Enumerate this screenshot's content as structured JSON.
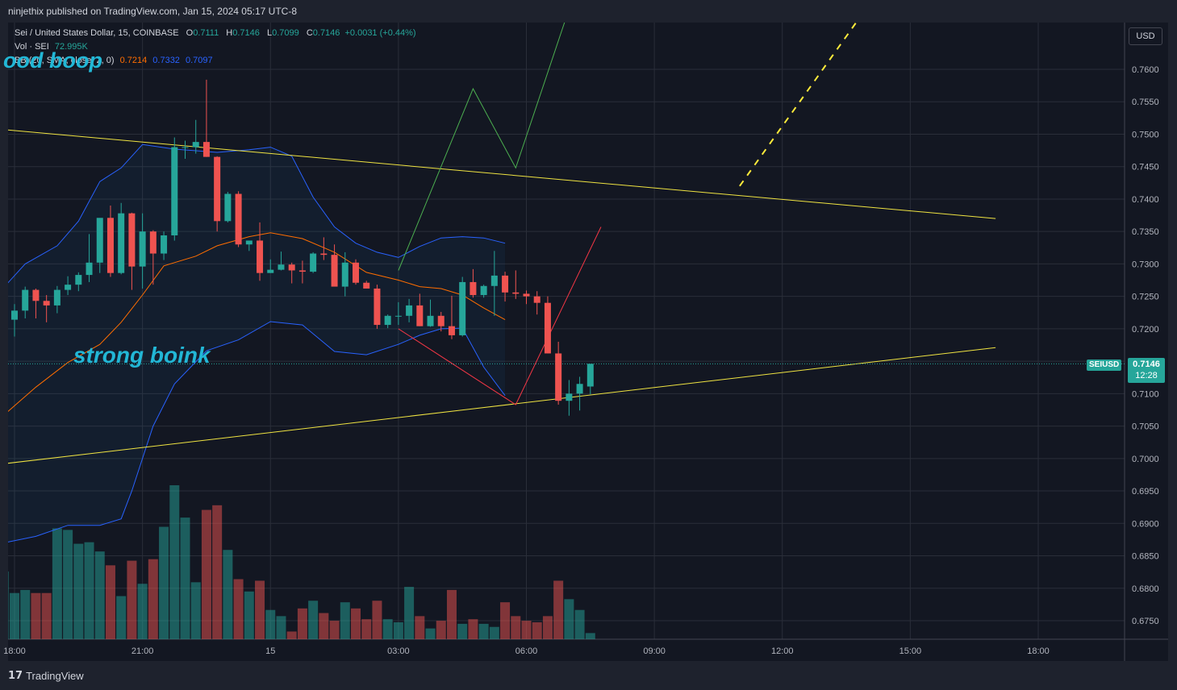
{
  "header": {
    "published_text": "ninjethix published on TradingView.com, Jan 15, 2024 05:17 UTC-8"
  },
  "legend": {
    "symbol": "Sei / United States Dollar, 15, COINBASE",
    "ohlc": {
      "O": "0.7111",
      "H": "0.7146",
      "L": "0.7099",
      "C": "0.7146",
      "change": "+0.0031 (+0.44%)"
    },
    "vol_label": "Vol · SEI",
    "vol_value": "72.995K",
    "bb_label": "BB (20, SMA, close, 2, 0)",
    "bb_basis": "0.7214",
    "bb_upper": "0.7332",
    "bb_lower": "0.7097"
  },
  "annotations": {
    "top_text": "ood boop",
    "mid_text": "strong boink"
  },
  "price_axis": {
    "currency_button": "USD",
    "current_symbol": "SEIUSD",
    "current_price": "0.7146",
    "countdown": "12:28"
  },
  "footer": {
    "brand": "TradingView"
  },
  "colors": {
    "background": "#131722",
    "up": "#26a69a",
    "down": "#ef5350",
    "trendline": "#f0e442",
    "bb_band": "#2962ff",
    "bb_basis": "#ff6d00",
    "green_projection": "#4caf50",
    "red_projection": "#f23645",
    "annotation_text": "#22b7d6"
  },
  "chart_data": {
    "type": "candlestick",
    "x_tick_labels": [
      "18:00",
      "21:00",
      "15",
      "03:00",
      "06:00",
      "09:00",
      "12:00",
      "15:00",
      "18:00"
    ],
    "y_ticks": [
      0.675,
      0.68,
      0.685,
      0.69,
      0.695,
      0.7,
      0.705,
      0.71,
      0.715,
      0.72,
      0.725,
      0.73,
      0.735,
      0.74,
      0.745,
      0.75,
      0.755,
      0.76
    ],
    "ylim": [
      0.6718,
      0.7698
    ],
    "first_bar_time_hours": 17.75,
    "bar_interval_hours": 0.25,
    "candles": [
      [
        0.7211,
        0.7222,
        0.7196,
        0.7214
      ],
      [
        0.7214,
        0.7238,
        0.7188,
        0.7228
      ],
      [
        0.7228,
        0.7265,
        0.7216,
        0.726
      ],
      [
        0.726,
        0.7262,
        0.7216,
        0.7243
      ],
      [
        0.7243,
        0.7252,
        0.721,
        0.7236
      ],
      [
        0.7236,
        0.7266,
        0.7224,
        0.726
      ],
      [
        0.726,
        0.7281,
        0.7252,
        0.7268
      ],
      [
        0.7268,
        0.7287,
        0.7258,
        0.7283
      ],
      [
        0.7283,
        0.7346,
        0.7272,
        0.7302
      ],
      [
        0.7302,
        0.737,
        0.7286,
        0.7371
      ],
      [
        0.7371,
        0.739,
        0.728,
        0.7286
      ],
      [
        0.7286,
        0.7394,
        0.7284,
        0.7378
      ],
      [
        0.7378,
        0.7379,
        0.726,
        0.7296
      ],
      [
        0.7296,
        0.7378,
        0.7262,
        0.735
      ],
      [
        0.735,
        0.7352,
        0.7268,
        0.7316
      ],
      [
        0.7316,
        0.735,
        0.7306,
        0.7344
      ],
      [
        0.7344,
        0.7495,
        0.7336,
        0.748
      ],
      [
        0.748,
        0.749,
        0.7462,
        0.748
      ],
      [
        0.748,
        0.7522,
        0.747,
        0.7488
      ],
      [
        0.7488,
        0.7584,
        0.7465,
        0.7465
      ],
      [
        0.7465,
        0.7466,
        0.735,
        0.7366
      ],
      [
        0.7366,
        0.7411,
        0.7364,
        0.7408
      ],
      [
        0.7408,
        0.7412,
        0.7326,
        0.733
      ],
      [
        0.733,
        0.7336,
        0.732,
        0.7336
      ],
      [
        0.7336,
        0.7364,
        0.7274,
        0.7286
      ],
      [
        0.7286,
        0.7307,
        0.7286,
        0.7291
      ],
      [
        0.7291,
        0.7319,
        0.729,
        0.7299
      ],
      [
        0.7299,
        0.7302,
        0.727,
        0.729
      ],
      [
        0.729,
        0.7305,
        0.727,
        0.7288
      ],
      [
        0.7288,
        0.7318,
        0.7286,
        0.7316
      ],
      [
        0.7316,
        0.7341,
        0.7306,
        0.7314
      ],
      [
        0.7314,
        0.733,
        0.7272,
        0.7265
      ],
      [
        0.7265,
        0.7318,
        0.725,
        0.7302
      ],
      [
        0.7302,
        0.7307,
        0.7268,
        0.7271
      ],
      [
        0.7271,
        0.7274,
        0.7262,
        0.7262
      ],
      [
        0.7262,
        0.7268,
        0.72,
        0.7206
      ],
      [
        0.7206,
        0.7222,
        0.7201,
        0.722
      ],
      [
        0.722,
        0.7241,
        0.7206,
        0.722
      ],
      [
        0.722,
        0.7246,
        0.721,
        0.7236
      ],
      [
        0.7236,
        0.7254,
        0.7204,
        0.7204
      ],
      [
        0.7204,
        0.7245,
        0.7203,
        0.722
      ],
      [
        0.722,
        0.7226,
        0.7196,
        0.7204
      ],
      [
        0.7204,
        0.7251,
        0.7184,
        0.719
      ],
      [
        0.719,
        0.728,
        0.7188,
        0.7272
      ],
      [
        0.7272,
        0.7292,
        0.7248,
        0.7252
      ],
      [
        0.7252,
        0.7268,
        0.7248,
        0.7266
      ],
      [
        0.7266,
        0.732,
        0.722,
        0.7282
      ],
      [
        0.7282,
        0.7288,
        0.7242,
        0.7256
      ],
      [
        0.7256,
        0.729,
        0.7246,
        0.7254
      ],
      [
        0.7254,
        0.7259,
        0.7238,
        0.725
      ],
      [
        0.725,
        0.7258,
        0.7222,
        0.724
      ],
      [
        0.724,
        0.725,
        0.7162,
        0.7162
      ],
      [
        0.7162,
        0.718,
        0.7083,
        0.7089
      ],
      [
        0.7089,
        0.7121,
        0.7066,
        0.71
      ],
      [
        0.71,
        0.7126,
        0.7074,
        0.7115
      ],
      [
        0.7111,
        0.7146,
        0.7099,
        0.7146
      ]
    ],
    "volume_relative": [
      0.44,
      0.3,
      0.32,
      0.3,
      0.3,
      0.72,
      0.71,
      0.62,
      0.63,
      0.57,
      0.48,
      0.28,
      0.51,
      0.36,
      0.52,
      0.73,
      1.0,
      0.79,
      0.37,
      0.84,
      0.87,
      0.58,
      0.39,
      0.31,
      0.38,
      0.19,
      0.15,
      0.05,
      0.2,
      0.25,
      0.17,
      0.12,
      0.24,
      0.2,
      0.13,
      0.25,
      0.13,
      0.11,
      0.34,
      0.15,
      0.07,
      0.12,
      0.32,
      0.1,
      0.13,
      0.1,
      0.08,
      0.24,
      0.15,
      0.12,
      0.11,
      0.15,
      0.38,
      0.26,
      0.19,
      0.04
    ],
    "bollinger": {
      "basis": [
        [
          17.75,
          0.7067
        ],
        [
          18.5,
          0.711
        ],
        [
          19.25,
          0.7148
        ],
        [
          20.0,
          0.7176
        ],
        [
          20.5,
          0.721
        ],
        [
          21.0,
          0.7252
        ],
        [
          21.5,
          0.7297
        ],
        [
          22.25,
          0.7312
        ],
        [
          22.75,
          0.7328
        ],
        [
          23.5,
          0.7342
        ],
        [
          24.0,
          0.7348
        ],
        [
          24.75,
          0.7339
        ],
        [
          25.5,
          0.7318
        ],
        [
          26.25,
          0.7287
        ],
        [
          27.0,
          0.7275
        ],
        [
          27.5,
          0.7265
        ],
        [
          28.0,
          0.7262
        ],
        [
          28.5,
          0.7252
        ],
        [
          29.0,
          0.7232
        ],
        [
          29.5,
          0.7214
        ]
      ],
      "upper": [
        [
          17.75,
          0.7264
        ],
        [
          18.25,
          0.73
        ],
        [
          19.0,
          0.7328
        ],
        [
          19.5,
          0.7366
        ],
        [
          20.0,
          0.7427
        ],
        [
          20.5,
          0.7448
        ],
        [
          21.0,
          0.7484
        ],
        [
          21.75,
          0.7477
        ],
        [
          22.75,
          0.7472
        ],
        [
          23.5,
          0.7476
        ],
        [
          24.0,
          0.748
        ],
        [
          24.5,
          0.7466
        ],
        [
          25.0,
          0.7403
        ],
        [
          25.5,
          0.7357
        ],
        [
          26.0,
          0.7332
        ],
        [
          26.5,
          0.7318
        ],
        [
          27.0,
          0.731
        ],
        [
          27.5,
          0.7327
        ],
        [
          28.0,
          0.734
        ],
        [
          28.5,
          0.7342
        ],
        [
          29.0,
          0.734
        ],
        [
          29.5,
          0.7332
        ]
      ],
      "lower": [
        [
          17.75,
          0.687
        ],
        [
          18.5,
          0.688
        ],
        [
          19.25,
          0.6897
        ],
        [
          20.0,
          0.6897
        ],
        [
          20.5,
          0.6907
        ],
        [
          20.75,
          0.695
        ],
        [
          21.25,
          0.705
        ],
        [
          21.75,
          0.7115
        ],
        [
          22.5,
          0.7166
        ],
        [
          23.25,
          0.7183
        ],
        [
          24.0,
          0.7211
        ],
        [
          24.75,
          0.7206
        ],
        [
          25.5,
          0.7165
        ],
        [
          26.25,
          0.716
        ],
        [
          27.0,
          0.7176
        ],
        [
          27.5,
          0.719
        ],
        [
          28.0,
          0.72
        ],
        [
          28.5,
          0.7201
        ],
        [
          29.0,
          0.7141
        ],
        [
          29.5,
          0.7097
        ]
      ]
    },
    "overlays": {
      "upper_trendline": [
        [
          17.75,
          0.7507
        ],
        [
          41.0,
          0.737
        ]
      ],
      "lower_trendline": [
        [
          17.75,
          0.6992
        ],
        [
          41.0,
          0.7171
        ]
      ],
      "green_projection": [
        [
          27.0,
          0.729
        ],
        [
          28.75,
          0.757
        ],
        [
          29.75,
          0.7448
        ],
        [
          31.25,
          0.7742
        ]
      ],
      "red_projection": [
        [
          27.0,
          0.72
        ],
        [
          29.75,
          0.7083
        ],
        [
          31.75,
          0.7357
        ]
      ],
      "yellow_dashed": [
        [
          35.0,
          0.742
        ],
        [
          38.25,
          0.772
        ]
      ]
    },
    "current_price_line": 0.7146
  }
}
